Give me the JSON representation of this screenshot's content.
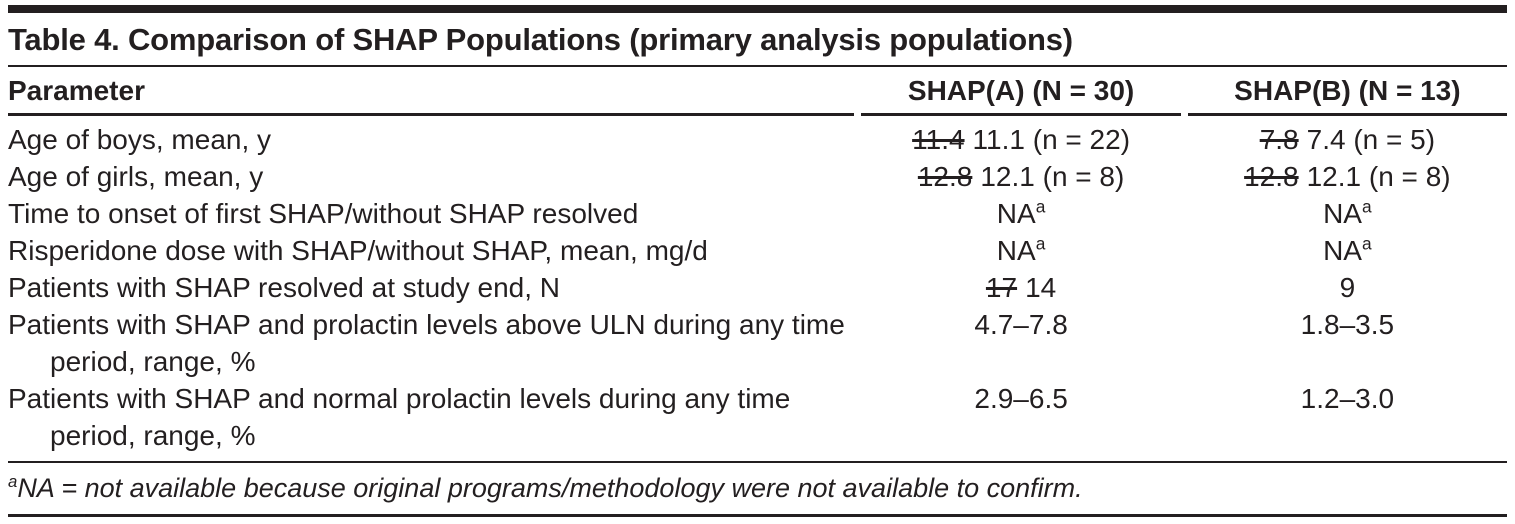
{
  "document": {
    "title": "Table 4. Comparison of SHAP Populations (primary analysis populations)",
    "columns": [
      "Parameter",
      "SHAP(A) (N = 30)",
      "SHAP(B) (N = 13)"
    ],
    "rows": [
      {
        "parameter": "Age of boys, mean, y",
        "shap_a": {
          "struck": "11.4",
          "value": "11.1 (n = 22)"
        },
        "shap_b": {
          "struck": "7.8",
          "value": "7.4 (n = 5)"
        }
      },
      {
        "parameter": "Age of girls, mean, y",
        "shap_a": {
          "struck": "12.8",
          "value": "12.1 (n = 8)"
        },
        "shap_b": {
          "struck": "12.8",
          "value": "12.1 (n = 8)"
        }
      },
      {
        "parameter": "Time to onset of first SHAP/without SHAP resolved",
        "shap_a": {
          "value": "NA",
          "sup": "a"
        },
        "shap_b": {
          "value": "NA",
          "sup": "a"
        }
      },
      {
        "parameter": "Risperidone dose with SHAP/without SHAP, mean, mg/d",
        "shap_a": {
          "value": "NA",
          "sup": "a"
        },
        "shap_b": {
          "value": "NA",
          "sup": "a"
        }
      },
      {
        "parameter": "Patients with SHAP resolved at study end, N",
        "shap_a": {
          "struck": "17",
          "value": "14"
        },
        "shap_b": {
          "value": "9"
        }
      },
      {
        "parameter": "Patients with SHAP and prolactin levels above ULN during any time period, range, %",
        "shap_a": {
          "value": "4.7–7.8"
        },
        "shap_b": {
          "value": "1.8–3.5"
        }
      },
      {
        "parameter": "Patients with SHAP and normal prolactin levels during any time period, range, %",
        "shap_a": {
          "value": "2.9–6.5"
        },
        "shap_b": {
          "value": "1.2–3.0"
        }
      }
    ],
    "footnote": {
      "marker": "a",
      "text": "NA = not available because original programs/methodology were not available to confirm."
    },
    "colors": {
      "text": "#231f20",
      "rule": "#231f20",
      "background": "#ffffff"
    }
  }
}
